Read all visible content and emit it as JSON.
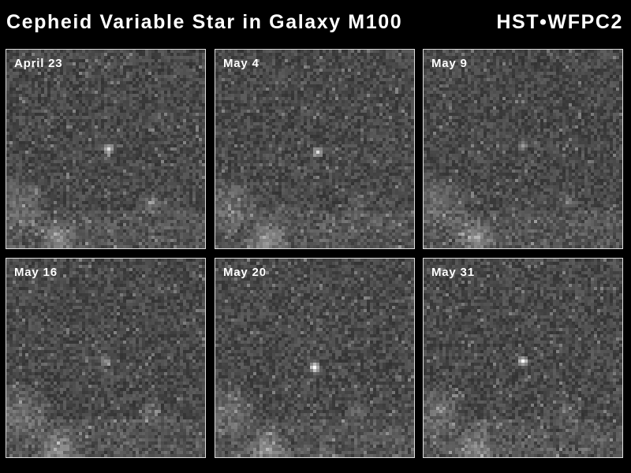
{
  "header": {
    "title": "Cepheid Variable Star in Galaxy M100",
    "instrument": "HST•WFPC2"
  },
  "panels": [
    {
      "label": "April 23"
    },
    {
      "label": "May 4"
    },
    {
      "label": "May 9"
    },
    {
      "label": "May 16"
    },
    {
      "label": "May 20"
    },
    {
      "label": "May 31"
    }
  ]
}
